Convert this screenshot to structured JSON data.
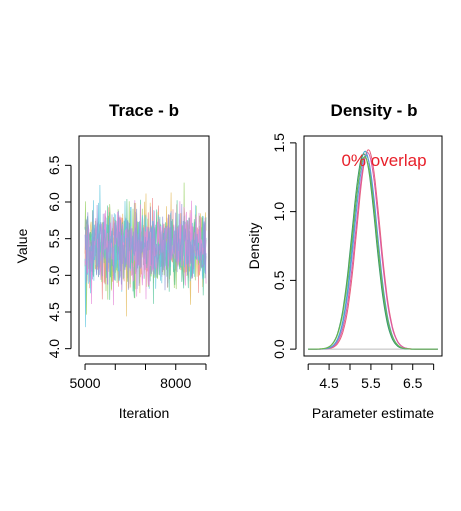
{
  "chart_data": [
    {
      "type": "line",
      "title": "Trace - b",
      "xlabel": "Iteration",
      "ylabel": "Value",
      "xlim": [
        4800,
        9100
      ],
      "ylim": [
        3.9,
        6.9
      ],
      "x_ticks": [
        5000,
        8000
      ],
      "x_tick_marks": [
        5000,
        6000,
        7000,
        8000,
        9000
      ],
      "y_ticks": [
        4.0,
        4.5,
        5.0,
        5.5,
        6.0,
        6.5
      ],
      "grid": false,
      "legend": "none",
      "series": [
        {
          "color": "#f08c8c",
          "mean": 5.38,
          "sd": 0.27
        },
        {
          "color": "#e6c068",
          "mean": 5.38,
          "sd": 0.27
        },
        {
          "color": "#9cd36a",
          "mean": 5.38,
          "sd": 0.27
        },
        {
          "color": "#5fc9a0",
          "mean": 5.38,
          "sd": 0.27
        },
        {
          "color": "#64c8e0",
          "mean": 5.38,
          "sd": 0.27
        },
        {
          "color": "#e48ad8",
          "mean": 5.38,
          "sd": 0.27
        },
        {
          "color": "#9698d8",
          "mean": 5.38,
          "sd": 0.26
        }
      ]
    },
    {
      "type": "line",
      "title": "Density - b",
      "xlabel": "Parameter estimate",
      "ylabel": "Density",
      "annotation": "0% overlap",
      "xlim": [
        3.9,
        7.2
      ],
      "ylim": [
        -0.05,
        1.55
      ],
      "x_ticks": [
        4.5,
        5.5,
        6.5
      ],
      "x_tick_marks": [
        4.0,
        4.5,
        5.0,
        5.5,
        6.0,
        6.5,
        7.0
      ],
      "y_ticks": [
        0.0,
        0.5,
        1.0,
        1.5
      ],
      "grid": false,
      "legend": "none",
      "series": [
        {
          "color": "#e8607a",
          "mean": 5.44,
          "sd": 0.275,
          "peak": 1.45
        },
        {
          "color": "#d85aa8",
          "mean": 5.42,
          "sd": 0.28,
          "peak": 1.43
        },
        {
          "color": "#4aa8c8",
          "mean": 5.36,
          "sd": 0.27,
          "peak": 1.44
        },
        {
          "color": "#3a9a68",
          "mean": 5.33,
          "sd": 0.28,
          "peak": 1.42
        },
        {
          "color": "#5a9ad8",
          "mean": 5.38,
          "sd": 0.275,
          "peak": 1.41
        },
        {
          "color": "#6fb84a",
          "mean": 5.35,
          "sd": 0.285,
          "peak": 1.4
        }
      ]
    }
  ]
}
